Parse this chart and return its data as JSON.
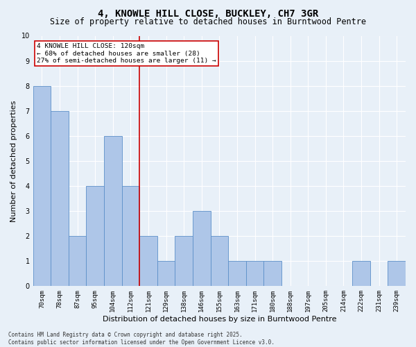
{
  "title": "4, KNOWLE HILL CLOSE, BUCKLEY, CH7 3GR",
  "subtitle": "Size of property relative to detached houses in Burntwood Pentre",
  "xlabel": "Distribution of detached houses by size in Burntwood Pentre",
  "ylabel": "Number of detached properties",
  "categories": [
    "70sqm",
    "78sqm",
    "87sqm",
    "95sqm",
    "104sqm",
    "112sqm",
    "121sqm",
    "129sqm",
    "138sqm",
    "146sqm",
    "155sqm",
    "163sqm",
    "171sqm",
    "180sqm",
    "188sqm",
    "197sqm",
    "205sqm",
    "214sqm",
    "222sqm",
    "231sqm",
    "239sqm"
  ],
  "values": [
    8,
    7,
    2,
    4,
    6,
    4,
    2,
    1,
    2,
    3,
    2,
    1,
    1,
    1,
    0,
    0,
    0,
    0,
    1,
    0,
    1
  ],
  "bar_color": "#aec6e8",
  "bar_edge_color": "#5b8fc9",
  "vline_color": "#cc0000",
  "annotation_text": "4 KNOWLE HILL CLOSE: 120sqm\n← 68% of detached houses are smaller (28)\n27% of semi-detached houses are larger (11) →",
  "annotation_box_color": "#ffffff",
  "annotation_box_edge_color": "#cc0000",
  "ylim": [
    0,
    10
  ],
  "yticks": [
    0,
    1,
    2,
    3,
    4,
    5,
    6,
    7,
    8,
    9,
    10
  ],
  "footer": "Contains HM Land Registry data © Crown copyright and database right 2025.\nContains public sector information licensed under the Open Government Licence v3.0.",
  "bg_color": "#e8f0f8",
  "grid_color": "#ffffff",
  "title_fontsize": 10,
  "subtitle_fontsize": 8.5,
  "tick_fontsize": 6.5,
  "ylabel_fontsize": 8,
  "xlabel_fontsize": 8,
  "annotation_fontsize": 6.8,
  "footer_fontsize": 5.5
}
